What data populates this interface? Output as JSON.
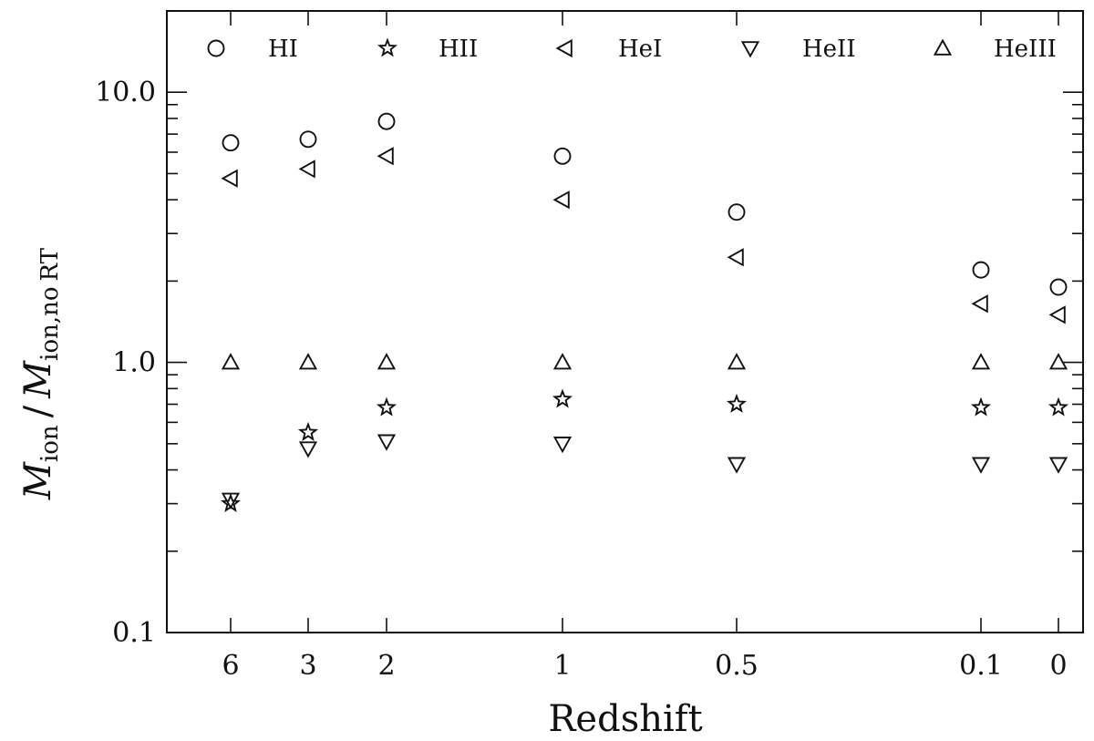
{
  "chart_data": {
    "type": "scatter",
    "xlabel": "Redshift",
    "ylabel": {
      "M1": "M",
      "sub1": "ion",
      "slash": "/",
      "M2": "M",
      "sub2": "ion,no",
      "sub2b": "RT"
    },
    "y_scale": "log",
    "ylim": [
      0.1,
      20
    ],
    "y_ticks": [
      "0.1",
      "1.0",
      "10.0"
    ],
    "categories": [
      "6",
      "3",
      "2",
      "1",
      "0.5",
      "0.1",
      "0"
    ],
    "series": [
      {
        "name": "HI",
        "marker": "circle",
        "values": [
          6.5,
          6.7,
          7.8,
          5.8,
          3.6,
          2.2,
          1.9
        ]
      },
      {
        "name": "HII",
        "marker": "star",
        "values": [
          0.3,
          0.55,
          0.68,
          0.73,
          0.7,
          0.68,
          0.68
        ]
      },
      {
        "name": "HeI",
        "marker": "triangle-left",
        "values": [
          4.8,
          5.2,
          5.8,
          4.0,
          2.45,
          1.65,
          1.5
        ]
      },
      {
        "name": "HeII",
        "marker": "triangle-down",
        "values": [
          0.31,
          0.48,
          0.51,
          0.5,
          0.42,
          0.42,
          0.42
        ]
      },
      {
        "name": "HeIII",
        "marker": "triangle-up",
        "values": [
          1.0,
          1.0,
          1.0,
          1.0,
          1.0,
          1.0,
          1.0
        ]
      }
    ],
    "grid": false,
    "legend_position": "top"
  }
}
